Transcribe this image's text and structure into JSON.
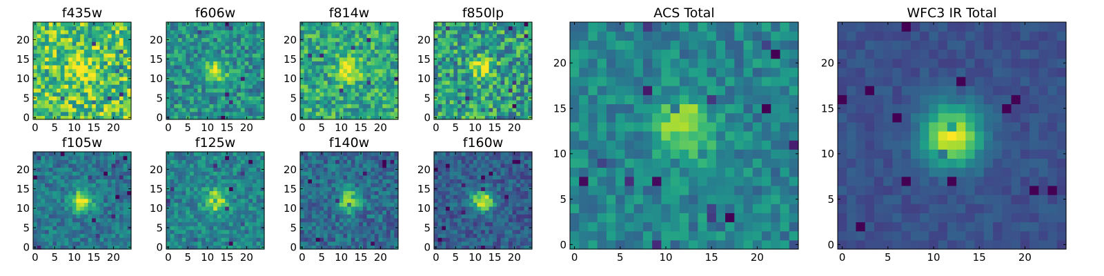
{
  "chart_data": [
    {
      "type": "heatmap",
      "title": "f435w",
      "colormap": "viridis",
      "xlim": [
        0,
        24
      ],
      "ylim": [
        0,
        24
      ],
      "xticks": [
        0,
        5,
        10,
        15,
        20
      ],
      "yticks": [
        0,
        5,
        10,
        15,
        20
      ],
      "source_center": [
        12,
        13
      ],
      "peak_relative": 0.28,
      "noise_relative": 0.55,
      "background_relative": 0.72
    },
    {
      "type": "heatmap",
      "title": "f606w",
      "colormap": "viridis",
      "xlim": [
        0,
        24
      ],
      "ylim": [
        0,
        24
      ],
      "xticks": [
        0,
        5,
        10,
        15,
        20
      ],
      "yticks": [
        0,
        5,
        10,
        15,
        20
      ],
      "source_center": [
        12,
        12
      ],
      "peak_relative": 0.5,
      "noise_relative": 0.42,
      "background_relative": 0.5
    },
    {
      "type": "heatmap",
      "title": "f814w",
      "colormap": "viridis",
      "xlim": [
        0,
        24
      ],
      "ylim": [
        0,
        24
      ],
      "xticks": [
        0,
        5,
        10,
        15,
        20
      ],
      "yticks": [
        0,
        5,
        10,
        15,
        20
      ],
      "source_center": [
        12,
        12
      ],
      "peak_relative": 0.42,
      "noise_relative": 0.45,
      "background_relative": 0.6
    },
    {
      "type": "heatmap",
      "title": "f850lp",
      "colormap": "viridis",
      "xlim": [
        0,
        24
      ],
      "ylim": [
        0,
        24
      ],
      "xticks": [
        0,
        5,
        10,
        15,
        20
      ],
      "yticks": [
        0,
        5,
        10,
        15,
        20
      ],
      "source_center": [
        12,
        13
      ],
      "peak_relative": 0.42,
      "noise_relative": 0.55,
      "background_relative": 0.55
    },
    {
      "type": "heatmap",
      "title": "f105w",
      "colormap": "viridis",
      "xlim": [
        0,
        24
      ],
      "ylim": [
        0,
        24
      ],
      "xticks": [
        0,
        5,
        10,
        15,
        20
      ],
      "yticks": [
        0,
        5,
        10,
        15,
        20
      ],
      "source_center": [
        12,
        12
      ],
      "peak_relative": 0.58,
      "noise_relative": 0.3,
      "background_relative": 0.4
    },
    {
      "type": "heatmap",
      "title": "f125w",
      "colormap": "viridis",
      "xlim": [
        0,
        24
      ],
      "ylim": [
        0,
        24
      ],
      "xticks": [
        0,
        5,
        10,
        15,
        20
      ],
      "yticks": [
        0,
        5,
        10,
        15,
        20
      ],
      "source_center": [
        12,
        12
      ],
      "peak_relative": 0.52,
      "noise_relative": 0.32,
      "background_relative": 0.45
    },
    {
      "type": "heatmap",
      "title": "f140w",
      "colormap": "viridis",
      "xlim": [
        0,
        24
      ],
      "ylim": [
        0,
        24
      ],
      "xticks": [
        0,
        5,
        10,
        15,
        20
      ],
      "yticks": [
        0,
        5,
        10,
        15,
        20
      ],
      "source_center": [
        12,
        12
      ],
      "peak_relative": 0.6,
      "noise_relative": 0.32,
      "background_relative": 0.35
    },
    {
      "type": "heatmap",
      "title": "f160w",
      "colormap": "viridis",
      "xlim": [
        0,
        24
      ],
      "ylim": [
        0,
        24
      ],
      "xticks": [
        0,
        5,
        10,
        15,
        20
      ],
      "yticks": [
        0,
        5,
        10,
        15,
        20
      ],
      "source_center": [
        12,
        12
      ],
      "peak_relative": 0.65,
      "noise_relative": 0.28,
      "background_relative": 0.3
    },
    {
      "type": "heatmap",
      "title": "ACS Total",
      "colormap": "viridis",
      "xlim": [
        0,
        24
      ],
      "ylim": [
        0,
        24
      ],
      "xticks": [
        0,
        5,
        10,
        15,
        20
      ],
      "yticks": [
        0,
        5,
        10,
        15,
        20
      ],
      "source_center": [
        12,
        13
      ],
      "peak_relative": 0.45,
      "noise_relative": 0.3,
      "background_relative": 0.45
    },
    {
      "type": "heatmap",
      "title": "WFC3 IR Total",
      "colormap": "viridis",
      "xlim": [
        0,
        24
      ],
      "ylim": [
        0,
        24
      ],
      "xticks": [
        0,
        5,
        10,
        15,
        20
      ],
      "yticks": [
        0,
        5,
        10,
        15,
        20
      ],
      "source_center": [
        12,
        12
      ],
      "peak_relative": 0.72,
      "noise_relative": 0.12,
      "background_relative": 0.25
    }
  ]
}
